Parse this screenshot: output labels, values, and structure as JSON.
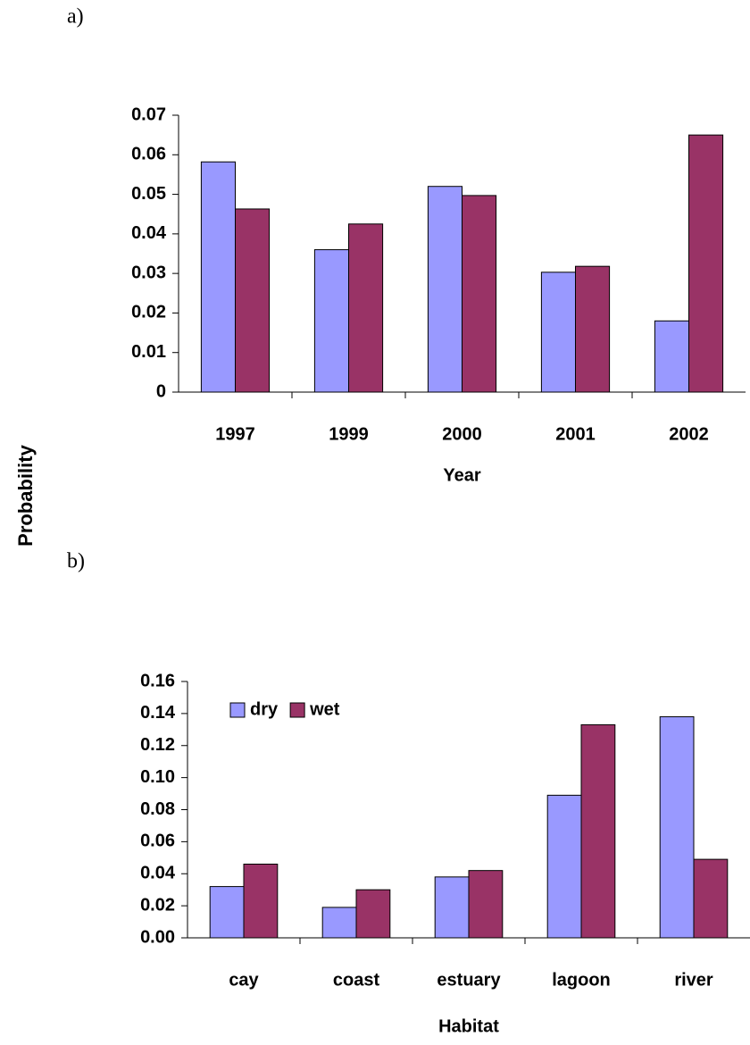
{
  "shared_axis_label": "Probability",
  "chart_data": [
    {
      "type": "bar",
      "panel_label": "a)",
      "xlabel": "Year",
      "categories": [
        "1997",
        "1999",
        "2000",
        "2001",
        "2002"
      ],
      "series": [
        {
          "color": "#9999ff",
          "values": [
            0.0582,
            0.036,
            0.052,
            0.0303,
            0.018
          ]
        },
        {
          "color": "#993366",
          "values": [
            0.0463,
            0.0425,
            0.0497,
            0.0318,
            0.065
          ]
        }
      ],
      "ylim": [
        0,
        0.07
      ],
      "yticks": [
        0,
        0.01,
        0.02,
        0.03,
        0.04,
        0.05,
        0.06,
        0.07
      ]
    },
    {
      "type": "bar",
      "panel_label": "b)",
      "xlabel": "Habitat",
      "categories": [
        "cay",
        "coast",
        "estuary",
        "lagoon",
        "river"
      ],
      "series": [
        {
          "name": "dry",
          "color": "#9999ff",
          "values": [
            0.032,
            0.019,
            0.038,
            0.089,
            0.138
          ]
        },
        {
          "name": "wet",
          "color": "#993366",
          "values": [
            0.046,
            0.03,
            0.042,
            0.133,
            0.049
          ]
        }
      ],
      "ylim": [
        0,
        0.16
      ],
      "yticks": [
        {
          "value": 0,
          "label": "0.00"
        },
        0.02,
        0.04,
        0.06,
        0.08,
        {
          "value": 0.1,
          "label": "0.10"
        },
        0.12,
        0.14,
        0.16
      ],
      "legend": "upper left"
    }
  ]
}
